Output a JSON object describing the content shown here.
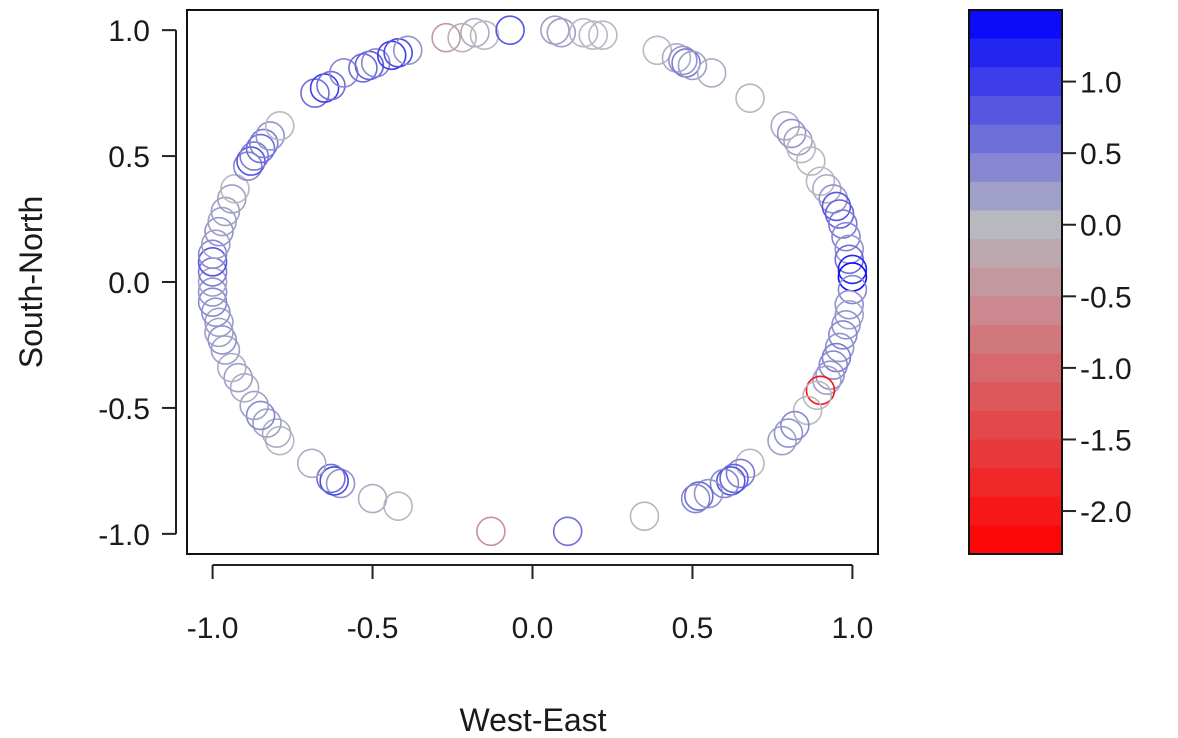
{
  "chart_data": {
    "type": "scatter",
    "xlabel": "West-East",
    "ylabel": "South-North",
    "xlim": [
      -1.08,
      1.08
    ],
    "ylim": [
      -1.08,
      1.08
    ],
    "x_ticks": [
      -1.0,
      -0.5,
      0.0,
      0.5,
      1.0
    ],
    "y_ticks": [
      -1.0,
      -0.5,
      0.0,
      0.5,
      1.0
    ],
    "x_tick_labels": [
      "-1.0",
      "-0.5",
      "0.0",
      "0.5",
      "1.0"
    ],
    "y_tick_labels": [
      "-1.0",
      "-0.5",
      "0.0",
      "0.5",
      "1.0"
    ],
    "marker": "open-circle",
    "grid": false,
    "colorbar": {
      "range": [
        -2.3,
        1.5
      ],
      "ticks": [
        1.0,
        0.5,
        0.0,
        -0.5,
        -1.0,
        -1.5,
        -2.0
      ],
      "tick_labels": [
        "1.0",
        "0.5",
        "0.0",
        "-0.5",
        "-1.0",
        "-1.5",
        "-2.0"
      ],
      "low_color": "#ff0000",
      "mid_color": "#b8b8c0",
      "high_color": "#0000ff",
      "levels": 19
    },
    "points": [
      {
        "x": -0.27,
        "y": 0.97,
        "v": -0.4
      },
      {
        "x": -0.22,
        "y": 0.97,
        "v": -0.1
      },
      {
        "x": -0.18,
        "y": 0.99,
        "v": 0.1
      },
      {
        "x": -0.15,
        "y": 0.98,
        "v": 0.0
      },
      {
        "x": -0.07,
        "y": 1.0,
        "v": 0.8
      },
      {
        "x": 0.07,
        "y": 1.0,
        "v": 0.2
      },
      {
        "x": 0.09,
        "y": 0.99,
        "v": 0.2
      },
      {
        "x": 0.16,
        "y": 0.99,
        "v": 0.0
      },
      {
        "x": 0.19,
        "y": 0.98,
        "v": 0.0
      },
      {
        "x": 0.22,
        "y": 0.98,
        "v": 0.0
      },
      {
        "x": 0.39,
        "y": 0.92,
        "v": 0.0
      },
      {
        "x": 0.45,
        "y": 0.89,
        "v": 0.1
      },
      {
        "x": 0.47,
        "y": 0.88,
        "v": 0.3
      },
      {
        "x": 0.48,
        "y": 0.87,
        "v": 0.5
      },
      {
        "x": 0.5,
        "y": 0.86,
        "v": 0.2
      },
      {
        "x": 0.56,
        "y": 0.83,
        "v": 0.1
      },
      {
        "x": 0.68,
        "y": 0.73,
        "v": 0.0
      },
      {
        "x": 0.79,
        "y": 0.62,
        "v": 0.1
      },
      {
        "x": 0.81,
        "y": 0.59,
        "v": 0.3
      },
      {
        "x": 0.83,
        "y": 0.56,
        "v": 0.2
      },
      {
        "x": 0.84,
        "y": 0.53,
        "v": 0.0
      },
      {
        "x": 0.87,
        "y": 0.48,
        "v": 0.0
      },
      {
        "x": 0.9,
        "y": 0.4,
        "v": 0.0
      },
      {
        "x": 0.92,
        "y": 0.37,
        "v": 0.1
      },
      {
        "x": 0.94,
        "y": 0.33,
        "v": 0.3
      },
      {
        "x": 0.95,
        "y": 0.3,
        "v": 0.8
      },
      {
        "x": 0.96,
        "y": 0.27,
        "v": 0.7
      },
      {
        "x": 0.97,
        "y": 0.23,
        "v": 0.5
      },
      {
        "x": 0.98,
        "y": 0.18,
        "v": 0.4
      },
      {
        "x": 0.99,
        "y": 0.13,
        "v": 0.3
      },
      {
        "x": 0.99,
        "y": 0.09,
        "v": 0.6
      },
      {
        "x": 1.0,
        "y": 0.05,
        "v": 1.2
      },
      {
        "x": 1.0,
        "y": 0.02,
        "v": 1.4
      },
      {
        "x": 1.0,
        "y": -0.03,
        "v": 0.4
      },
      {
        "x": 0.99,
        "y": -0.09,
        "v": 0.3
      },
      {
        "x": 0.99,
        "y": -0.13,
        "v": 0.2
      },
      {
        "x": 0.98,
        "y": -0.17,
        "v": 0.3
      },
      {
        "x": 0.97,
        "y": -0.21,
        "v": 0.4
      },
      {
        "x": 0.96,
        "y": -0.26,
        "v": 0.3
      },
      {
        "x": 0.95,
        "y": -0.3,
        "v": 0.5
      },
      {
        "x": 0.94,
        "y": -0.33,
        "v": 0.4
      },
      {
        "x": 0.93,
        "y": -0.37,
        "v": 0.3
      },
      {
        "x": 0.92,
        "y": -0.39,
        "v": 0.2
      },
      {
        "x": 0.9,
        "y": -0.43,
        "v": -2.1
      },
      {
        "x": 0.89,
        "y": -0.45,
        "v": 0.0
      },
      {
        "x": 0.86,
        "y": -0.51,
        "v": 0.0
      },
      {
        "x": 0.82,
        "y": -0.57,
        "v": 0.4
      },
      {
        "x": 0.8,
        "y": -0.6,
        "v": 0.3
      },
      {
        "x": 0.78,
        "y": -0.63,
        "v": 0.2
      },
      {
        "x": 0.68,
        "y": -0.72,
        "v": 0.0
      },
      {
        "x": 0.65,
        "y": -0.76,
        "v": 0.5
      },
      {
        "x": 0.63,
        "y": -0.78,
        "v": 0.7
      },
      {
        "x": 0.62,
        "y": -0.79,
        "v": 0.8
      },
      {
        "x": 0.6,
        "y": -0.8,
        "v": 0.4
      },
      {
        "x": 0.55,
        "y": -0.84,
        "v": 0.3
      },
      {
        "x": 0.52,
        "y": -0.85,
        "v": 0.6
      },
      {
        "x": 0.51,
        "y": -0.86,
        "v": 0.4
      },
      {
        "x": 0.35,
        "y": -0.93,
        "v": 0.0
      },
      {
        "x": 0.11,
        "y": -0.99,
        "v": 0.6
      },
      {
        "x": -0.13,
        "y": -0.99,
        "v": -0.5
      },
      {
        "x": -0.42,
        "y": -0.89,
        "v": 0.0
      },
      {
        "x": -0.5,
        "y": -0.86,
        "v": 0.1
      },
      {
        "x": -0.6,
        "y": -0.8,
        "v": 0.3
      },
      {
        "x": -0.62,
        "y": -0.79,
        "v": 0.9
      },
      {
        "x": -0.63,
        "y": -0.78,
        "v": 0.6
      },
      {
        "x": -0.69,
        "y": -0.72,
        "v": 0.1
      },
      {
        "x": -0.79,
        "y": -0.63,
        "v": 0.0
      },
      {
        "x": -0.8,
        "y": -0.6,
        "v": 0.1
      },
      {
        "x": -0.83,
        "y": -0.56,
        "v": 0.2
      },
      {
        "x": -0.85,
        "y": -0.53,
        "v": 0.4
      },
      {
        "x": -0.87,
        "y": -0.49,
        "v": 0.2
      },
      {
        "x": -0.9,
        "y": -0.42,
        "v": 0.1
      },
      {
        "x": -0.92,
        "y": -0.38,
        "v": 0.2
      },
      {
        "x": -0.94,
        "y": -0.34,
        "v": 0.1
      },
      {
        "x": -0.96,
        "y": -0.27,
        "v": 0.2
      },
      {
        "x": -0.97,
        "y": -0.23,
        "v": 0.3
      },
      {
        "x": -0.98,
        "y": -0.2,
        "v": 0.2
      },
      {
        "x": -0.98,
        "y": -0.16,
        "v": 0.2
      },
      {
        "x": -0.99,
        "y": -0.12,
        "v": 0.3
      },
      {
        "x": -1.0,
        "y": -0.08,
        "v": 0.4
      },
      {
        "x": -1.0,
        "y": -0.04,
        "v": 0.3
      },
      {
        "x": -1.0,
        "y": 0.0,
        "v": 0.2
      },
      {
        "x": -1.0,
        "y": 0.04,
        "v": 0.5
      },
      {
        "x": -1.0,
        "y": 0.08,
        "v": 0.8
      },
      {
        "x": -1.0,
        "y": 0.11,
        "v": 0.4
      },
      {
        "x": -0.99,
        "y": 0.15,
        "v": 0.2
      },
      {
        "x": -0.98,
        "y": 0.2,
        "v": 0.3
      },
      {
        "x": -0.97,
        "y": 0.24,
        "v": 0.2
      },
      {
        "x": -0.96,
        "y": 0.28,
        "v": 0.2
      },
      {
        "x": -0.94,
        "y": 0.33,
        "v": 0.2
      },
      {
        "x": -0.93,
        "y": 0.37,
        "v": 0.0
      },
      {
        "x": -0.89,
        "y": 0.46,
        "v": 0.4
      },
      {
        "x": -0.88,
        "y": 0.48,
        "v": 0.8
      },
      {
        "x": -0.87,
        "y": 0.5,
        "v": 0.5
      },
      {
        "x": -0.85,
        "y": 0.53,
        "v": 0.6
      },
      {
        "x": -0.84,
        "y": 0.55,
        "v": 0.5
      },
      {
        "x": -0.82,
        "y": 0.58,
        "v": 0.3
      },
      {
        "x": -0.79,
        "y": 0.62,
        "v": 0.0
      },
      {
        "x": -0.68,
        "y": 0.75,
        "v": 0.6
      },
      {
        "x": -0.65,
        "y": 0.77,
        "v": 1.0
      },
      {
        "x": -0.63,
        "y": 0.78,
        "v": 0.6
      },
      {
        "x": -0.59,
        "y": 0.83,
        "v": 0.4
      },
      {
        "x": -0.53,
        "y": 0.85,
        "v": 0.6
      },
      {
        "x": -0.51,
        "y": 0.86,
        "v": 0.7
      },
      {
        "x": -0.49,
        "y": 0.87,
        "v": 0.4
      },
      {
        "x": -0.44,
        "y": 0.9,
        "v": 1.0
      },
      {
        "x": -0.42,
        "y": 0.91,
        "v": 0.9
      },
      {
        "x": -0.39,
        "y": 0.92,
        "v": 0.3
      }
    ]
  }
}
